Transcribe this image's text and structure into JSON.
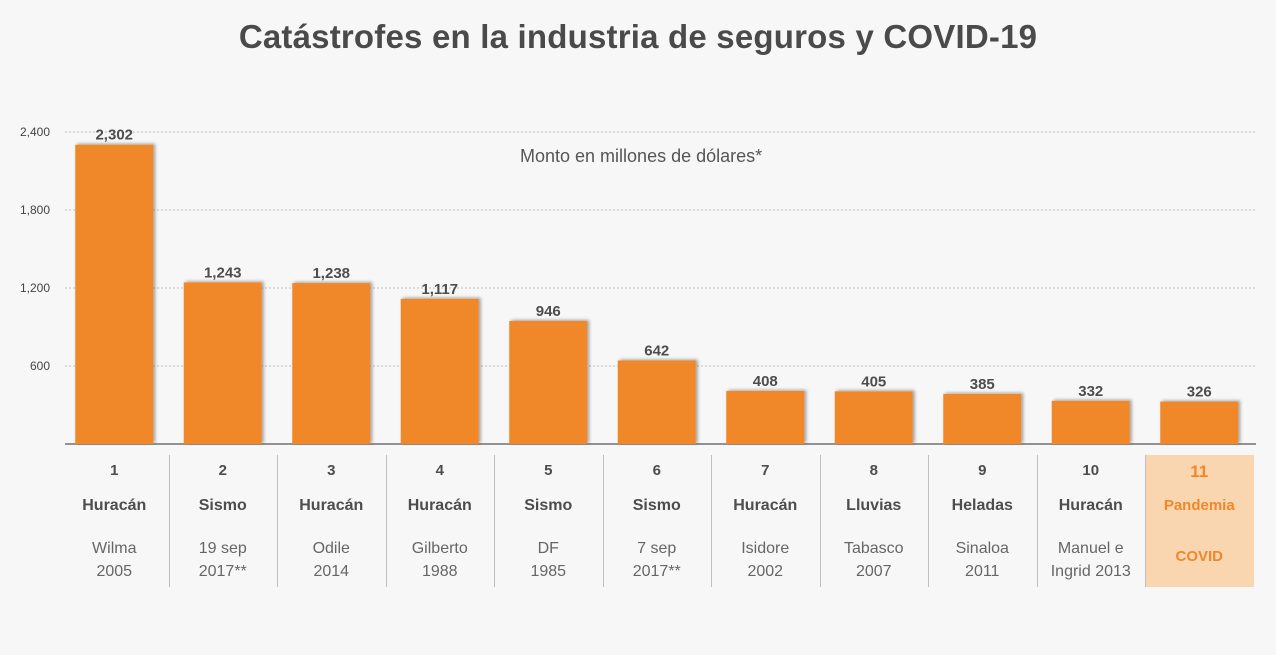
{
  "title": "Catástrofes en la industria de seguros y COVID-19",
  "subtitle": "Monto en millones de dólares*",
  "colors": {
    "bar": "#f0882a",
    "highlight_bg": "#f9d6b0",
    "highlight_text": "#f0882a",
    "grid": "#bdbdbd",
    "axis": "#555555"
  },
  "chart_data": {
    "type": "bar",
    "categories": [
      "1",
      "2",
      "3",
      "4",
      "5",
      "6",
      "7",
      "8",
      "9",
      "10",
      "11"
    ],
    "values": [
      2302,
      1243,
      1238,
      1117,
      946,
      642,
      408,
      405,
      385,
      332,
      326
    ],
    "value_labels": [
      "2,302",
      "1,243",
      "1,238",
      "1,117",
      "946",
      "642",
      "408",
      "405",
      "385",
      "332",
      "326"
    ],
    "yticks": [
      "600",
      "1,200",
      "1,800",
      "2,400"
    ],
    "ytick_values": [
      600,
      1200,
      1800,
      2400
    ],
    "ylim": [
      0,
      2400
    ],
    "grid": true,
    "details": [
      {
        "num": "1",
        "type": "Huracán",
        "name": "Wilma\n2005"
      },
      {
        "num": "2",
        "type": "Sismo",
        "name": "19 sep\n2017**"
      },
      {
        "num": "3",
        "type": "Huracán",
        "name": "Odile\n2014"
      },
      {
        "num": "4",
        "type": "Huracán",
        "name": "Gilberto\n1988"
      },
      {
        "num": "5",
        "type": "Sismo",
        "name": "DF\n1985"
      },
      {
        "num": "6",
        "type": "Sismo",
        "name": "7 sep\n2017**"
      },
      {
        "num": "7",
        "type": "Huracán",
        "name": "Isidore\n2002"
      },
      {
        "num": "8",
        "type": "Lluvias",
        "name": "Tabasco\n2007"
      },
      {
        "num": "9",
        "type": "Heladas",
        "name": "Sinaloa\n2011"
      },
      {
        "num": "10",
        "type": "Huracán",
        "name": "Manuel e\nIngrid 2013"
      },
      {
        "num": "11",
        "type": "Pandemia",
        "name": "COVID",
        "highlight": true
      }
    ]
  }
}
